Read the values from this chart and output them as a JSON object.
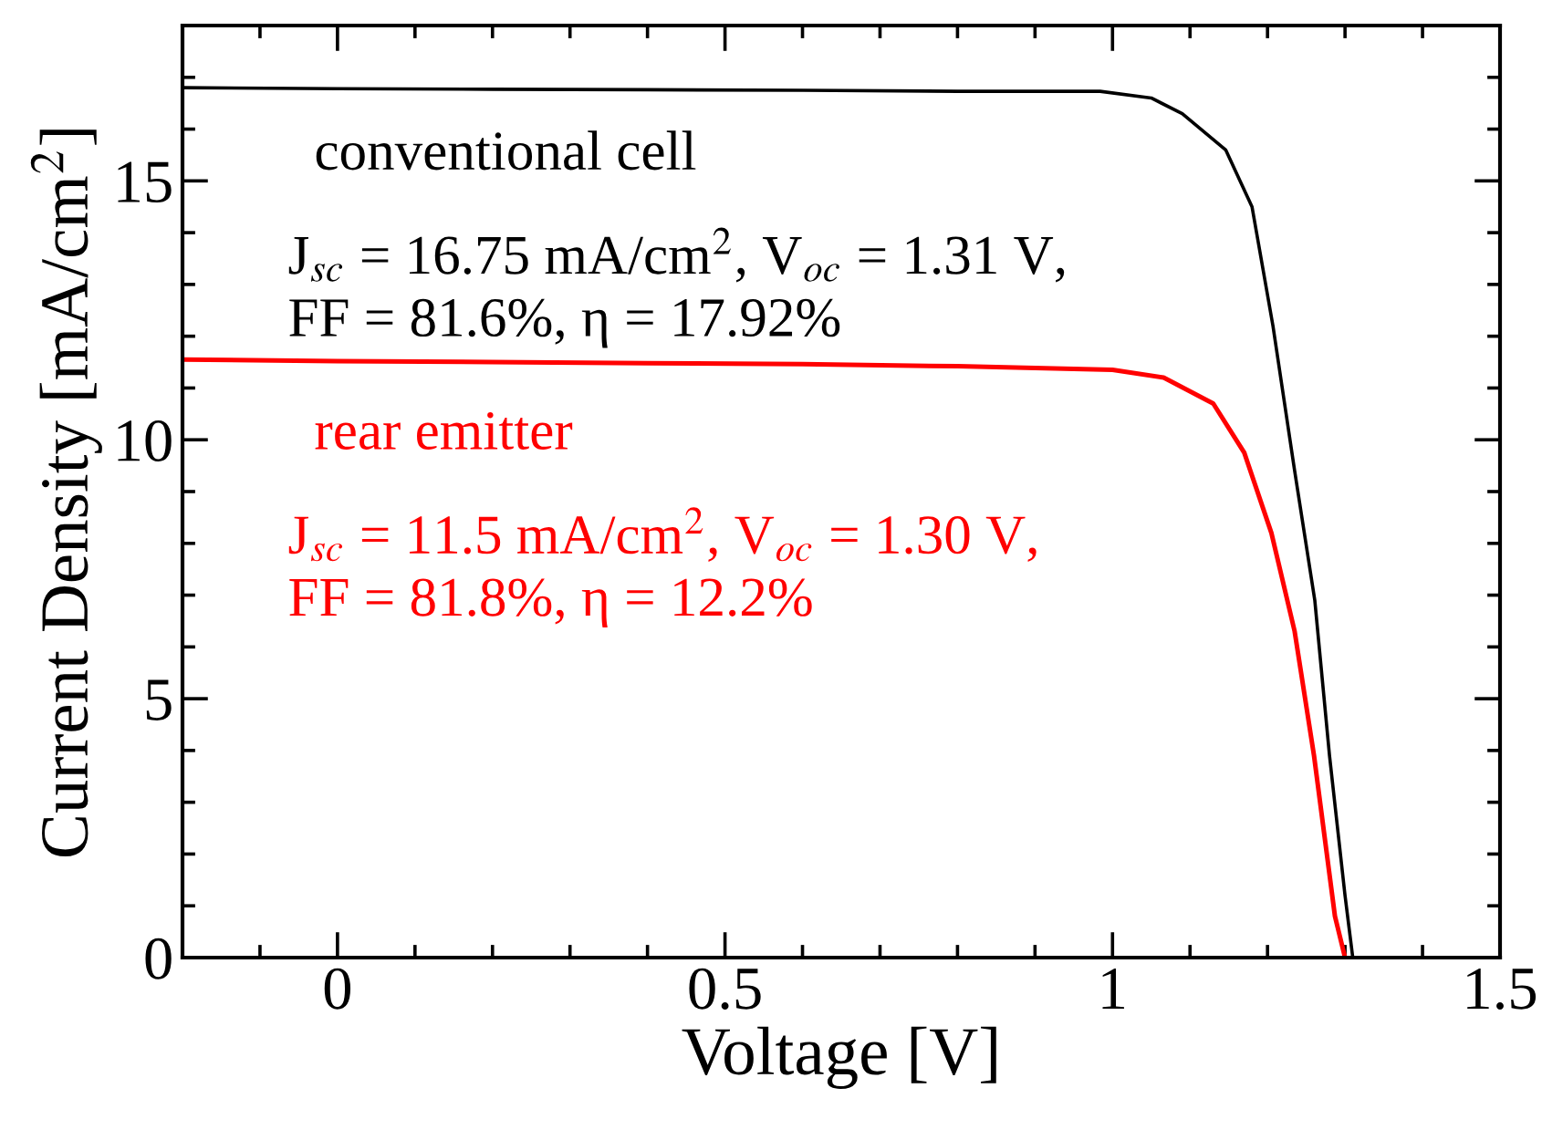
{
  "chart_data": {
    "type": "line",
    "xlabel": "Voltage [V]",
    "ylabel": "Current Density [mA/cm$^{2}$]",
    "xlim": [
      -0.2,
      1.5
    ],
    "xticks": [
      0,
      0.5,
      1,
      1.5
    ],
    "ylim": [
      0,
      18
    ],
    "yticks": [
      0,
      5,
      10,
      15
    ],
    "grid": false,
    "legend": false,
    "marker": "none",
    "line_style": "solid",
    "series": [
      {
        "name": "conventional cell",
        "color": "#000000",
        "x": [
          -0.2,
          0,
          0.2,
          0.4,
          0.6,
          0.8,
          0.984,
          1.05,
          1.09,
          1.146,
          1.18,
          1.207,
          1.235,
          1.261,
          1.28,
          1.3,
          1.31
        ],
        "values": [
          16.8,
          16.78,
          16.77,
          16.76,
          16.75,
          16.73,
          16.73,
          16.6,
          16.3,
          15.6,
          14.5,
          12.2,
          9.4,
          6.9,
          3.9,
          1.2,
          0
        ]
      },
      {
        "name": "rear emitter",
        "color": "#ff0000",
        "x": [
          -0.2,
          0,
          0.2,
          0.4,
          0.6,
          0.8,
          1.0,
          1.066,
          1.13,
          1.17,
          1.205,
          1.235,
          1.26,
          1.287,
          1.3
        ],
        "values": [
          11.55,
          11.52,
          11.5,
          11.48,
          11.46,
          11.42,
          11.35,
          11.2,
          10.7,
          9.75,
          8.2,
          6.3,
          3.9,
          0.8,
          0
        ]
      }
    ],
    "annotations": [
      "J$_{sc}$ = 16.75 mA/cm$^{2}$, V$_{oc}$ = 1.31 V,\nFF = 81.6%, η = 17.92%",
      "J$_{sc}$ = 11.5 mA/cm$^{2}$, V$_{oc}$ = 1.30 V,\nFF = 81.8%, η = 12.2%"
    ]
  }
}
